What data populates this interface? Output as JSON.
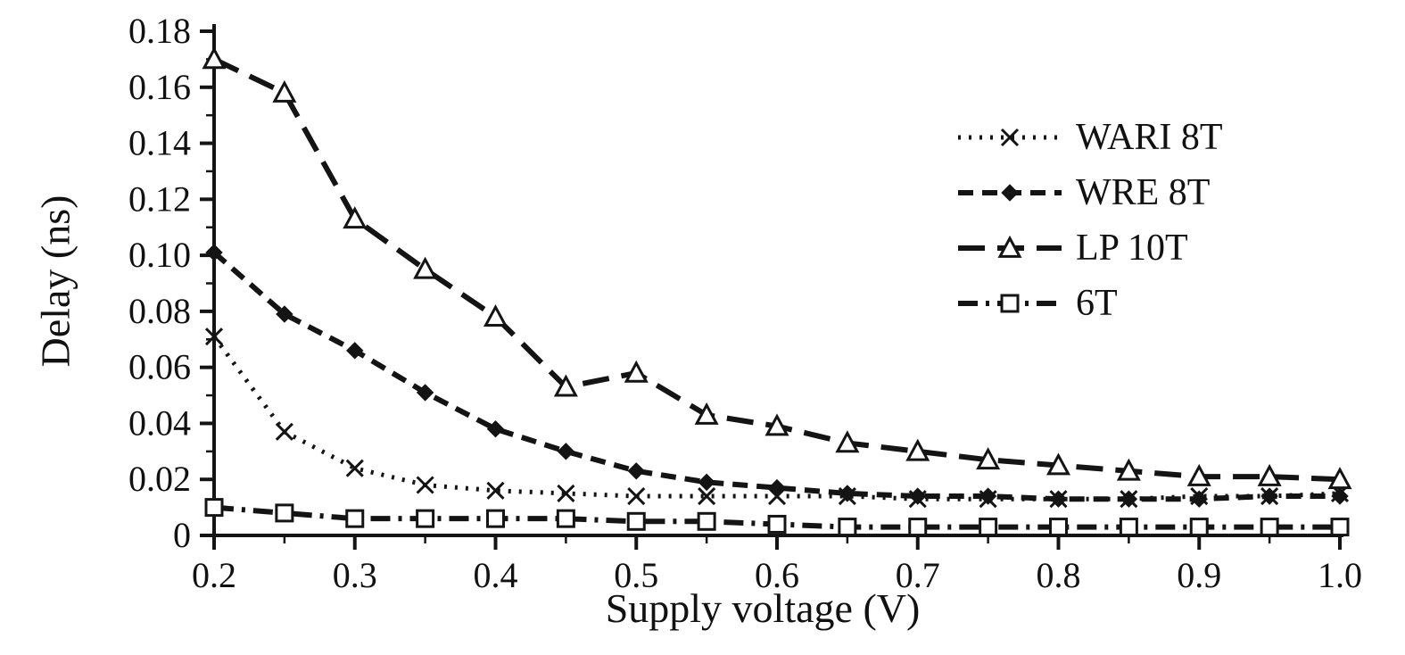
{
  "chart_data": {
    "type": "line",
    "title": "",
    "xlabel": "Supply voltage (V)",
    "ylabel": "Delay (ns)",
    "xlim": [
      0.2,
      1.0
    ],
    "ylim": [
      0,
      0.18
    ],
    "grid": false,
    "legend_position": "upper right",
    "line_color": "#141414",
    "x_tick_labels": [
      "0.2",
      "0.3",
      "0.4",
      "0.5",
      "0.6",
      "0.7",
      "0.8",
      "0.9",
      "1.0"
    ],
    "y_tick_labels": [
      "0",
      "0.02",
      "0.04",
      "0.06",
      "0.08",
      "0.10",
      "0.12",
      "0.14",
      "0.16",
      "0.18"
    ],
    "x": [
      0.2,
      0.25,
      0.3,
      0.35,
      0.4,
      0.45,
      0.5,
      0.55,
      0.6,
      0.65,
      0.7,
      0.75,
      0.8,
      0.85,
      0.9,
      0.95,
      1.0
    ],
    "series": [
      {
        "name": "WARI 8T",
        "marker": "x-marker-icon",
        "line_style": "dotted",
        "dash": "3 9",
        "width": 5,
        "values": [
          0.071,
          0.037,
          0.024,
          0.018,
          0.016,
          0.015,
          0.014,
          0.014,
          0.014,
          0.014,
          0.013,
          0.013,
          0.013,
          0.013,
          0.014,
          0.014,
          0.015
        ]
      },
      {
        "name": "WRE 8T",
        "marker": "diamond-icon",
        "line_style": "dashed",
        "dash": "17 10",
        "width": 6,
        "values": [
          0.101,
          0.079,
          0.066,
          0.051,
          0.038,
          0.03,
          0.023,
          0.019,
          0.017,
          0.015,
          0.014,
          0.014,
          0.013,
          0.013,
          0.013,
          0.014,
          0.014
        ]
      },
      {
        "name": "LP 10T",
        "marker": "triangle-open-icon",
        "line_style": "long-dash",
        "dash": "30 14",
        "width": 6,
        "values": [
          0.17,
          0.158,
          0.113,
          0.095,
          0.078,
          0.053,
          0.058,
          0.043,
          0.039,
          0.033,
          0.03,
          0.027,
          0.025,
          0.023,
          0.021,
          0.021,
          0.02
        ]
      },
      {
        "name": "6T",
        "marker": "square-open-icon",
        "line_style": "dash-dot",
        "dash": "22 9 4 9",
        "width": 6,
        "values": [
          0.01,
          0.008,
          0.006,
          0.006,
          0.006,
          0.006,
          0.005,
          0.005,
          0.004,
          0.003,
          0.003,
          0.003,
          0.003,
          0.003,
          0.003,
          0.003,
          0.003
        ]
      }
    ]
  }
}
